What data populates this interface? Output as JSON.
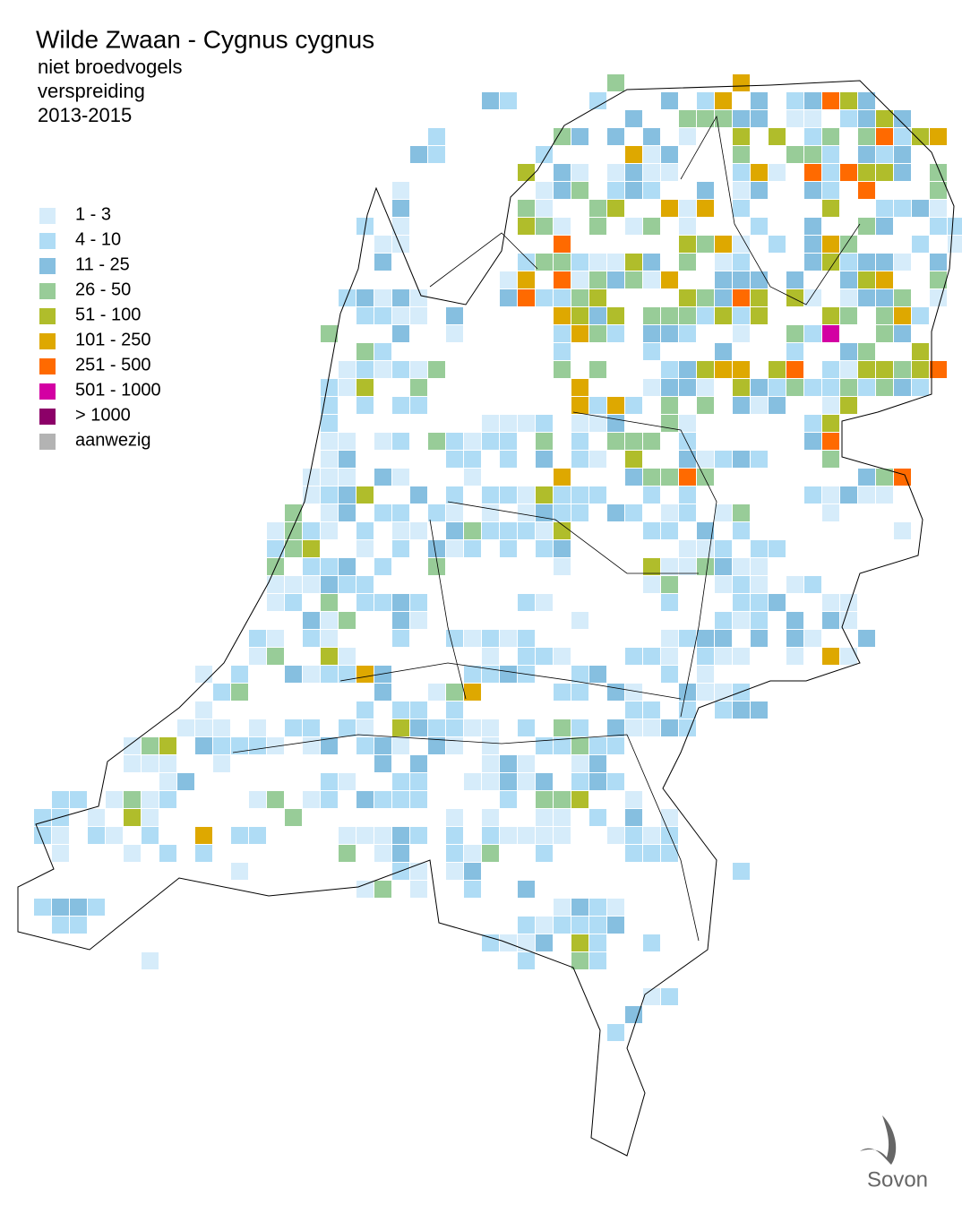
{
  "header": {
    "title": "Wilde Zwaan - Cygnus cygnus",
    "lines": [
      "niet broedvogels",
      "verspreiding",
      "2013-2015"
    ]
  },
  "legend": {
    "items": [
      {
        "label": "1 - 3",
        "color": "#d6ecfa"
      },
      {
        "label": "4 - 10",
        "color": "#afdcf5"
      },
      {
        "label": "11 - 25",
        "color": "#86bfe0"
      },
      {
        "label": "26 - 50",
        "color": "#98cc98"
      },
      {
        "label": "51 - 100",
        "color": "#b0bd2b"
      },
      {
        "label": "101 - 250",
        "color": "#dea800"
      },
      {
        "label": "251 - 500",
        "color": "#ff6a00"
      },
      {
        "label": "501 - 1000",
        "color": "#d300a3"
      },
      {
        "label": "> 1000",
        "color": "#8c0068"
      },
      {
        "label": "aanwezig",
        "color": "#b3b3b3"
      }
    ]
  },
  "logo": {
    "text": "Sovon"
  }
}
